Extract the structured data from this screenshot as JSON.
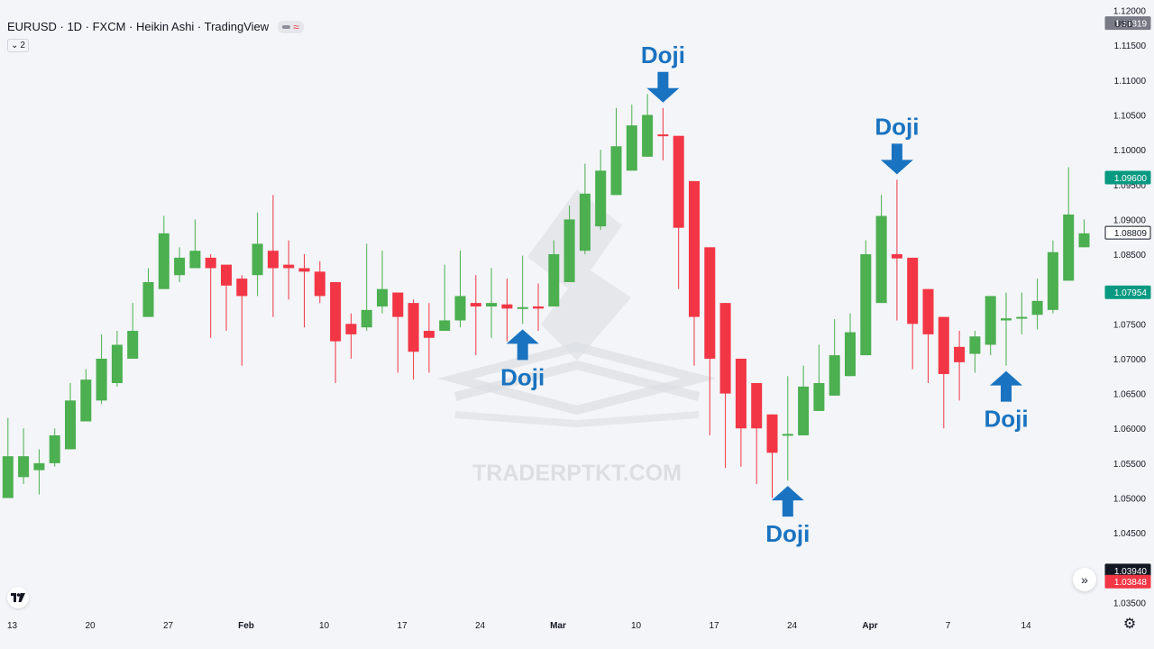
{
  "header": {
    "title": "EURUSD · 1D · FXCM · Heikin Ashi · TradingView",
    "indicator_count": "2",
    "currency": "USD"
  },
  "colors": {
    "up": "#4caf50",
    "down": "#f23645",
    "annotation": "#1a73c0",
    "watermark": "#d9dbdf"
  },
  "watermark": {
    "text": "TRADERPTKT.COM"
  },
  "chart_data": {
    "type": "candlestick",
    "style": "Heikin Ashi",
    "ylim": [
      1.0335,
      1.1215
    ],
    "grid": false,
    "yticks": [
      "1.12000",
      "1.11500",
      "1.11000",
      "1.10500",
      "1.10000",
      "1.09500",
      "1.09000",
      "1.08500",
      "1.08000",
      "1.07500",
      "1.07000",
      "1.06500",
      "1.06000",
      "1.05500",
      "1.05000",
      "1.04500",
      "1.04000",
      "1.03500"
    ],
    "xticks": [
      {
        "label": "13",
        "index": 0
      },
      {
        "label": "20",
        "index": 5
      },
      {
        "label": "27",
        "index": 10
      },
      {
        "label": "Feb",
        "index": 15,
        "bold": true
      },
      {
        "label": "10",
        "index": 20
      },
      {
        "label": "17",
        "index": 25
      },
      {
        "label": "24",
        "index": 30
      },
      {
        "label": "Mar",
        "index": 35,
        "bold": true
      },
      {
        "label": "10",
        "index": 40
      },
      {
        "label": "17",
        "index": 45
      },
      {
        "label": "24",
        "index": 50
      },
      {
        "label": "Apr",
        "index": 55,
        "bold": true
      },
      {
        "label": "7",
        "index": 60
      },
      {
        "label": "14",
        "index": 65
      }
    ],
    "candles": [
      [
        1.051,
        1.056,
        1.047,
        1.047
      ],
      [
        1.05,
        1.056,
        1.0615,
        1.05
      ],
      [
        1.053,
        1.056,
        1.06,
        1.052
      ],
      [
        1.054,
        1.055,
        1.057,
        1.0505
      ],
      [
        1.055,
        1.059,
        1.06,
        1.0545
      ],
      [
        1.057,
        1.064,
        1.0665,
        1.057
      ],
      [
        1.061,
        1.067,
        1.0685,
        1.061
      ],
      [
        1.064,
        1.07,
        1.0735,
        1.0635
      ],
      [
        1.0665,
        1.072,
        1.074,
        1.066
      ],
      [
        1.07,
        1.074,
        1.078,
        1.07
      ],
      [
        1.076,
        1.081,
        1.083,
        1.076
      ],
      [
        1.08,
        1.088,
        1.0905,
        1.08
      ],
      [
        1.082,
        1.0845,
        1.086,
        1.081
      ],
      [
        1.083,
        1.0855,
        1.09,
        1.083
      ],
      [
        1.0845,
        1.083,
        1.085,
        1.073
      ],
      [
        1.0835,
        1.0805,
        1.083,
        1.074
      ],
      [
        1.0815,
        1.079,
        1.082,
        1.069
      ],
      [
        1.082,
        1.0865,
        1.091,
        1.079
      ],
      [
        1.0855,
        1.083,
        1.0935,
        1.076
      ],
      [
        1.0835,
        1.083,
        1.087,
        1.0785
      ],
      [
        1.083,
        1.0825,
        1.085,
        1.0745
      ],
      [
        1.0825,
        1.079,
        1.084,
        1.078
      ],
      [
        1.081,
        1.0725,
        1.081,
        1.0665
      ],
      [
        1.075,
        1.0735,
        1.0765,
        1.07
      ],
      [
        1.0745,
        1.077,
        1.0865,
        1.074
      ],
      [
        1.0775,
        1.08,
        1.0855,
        1.0765
      ],
      [
        1.0795,
        1.076,
        1.0795,
        1.068
      ],
      [
        1.078,
        1.071,
        1.0785,
        1.067
      ],
      [
        1.074,
        1.073,
        1.078,
        1.068
      ],
      [
        1.074,
        1.0755,
        1.0835,
        1.074
      ],
      [
        1.0755,
        1.079,
        1.0855,
        1.0745
      ],
      [
        1.078,
        1.0775,
        1.082,
        1.0705
      ],
      [
        1.0775,
        1.078,
        1.083,
        1.073
      ],
      [
        1.0778,
        1.0772,
        1.0815,
        1.0725
      ],
      [
        1.0774,
        1.0774,
        1.0848,
        1.075
      ],
      [
        1.0775,
        1.0772,
        1.0808,
        1.074
      ],
      [
        1.0775,
        1.085,
        1.087,
        1.0775
      ],
      [
        1.081,
        1.09,
        1.092,
        1.081
      ],
      [
        1.0855,
        1.0937,
        1.098,
        1.085
      ],
      [
        1.089,
        1.097,
        1.1,
        1.0885
      ],
      [
        1.0935,
        1.1005,
        1.106,
        1.0935
      ],
      [
        1.097,
        1.1035,
        1.1065,
        1.097
      ],
      [
        1.099,
        1.105,
        1.108,
        1.099
      ],
      [
        1.1022,
        1.102,
        1.106,
        1.0985
      ],
      [
        1.102,
        1.0888,
        1.102,
        1.08
      ],
      [
        1.0955,
        1.076,
        1.0955,
        1.069
      ],
      [
        1.086,
        1.07,
        1.086,
        1.059
      ],
      [
        1.078,
        1.065,
        1.078,
        1.0543
      ],
      [
        1.07,
        1.06,
        1.07,
        1.0545
      ],
      [
        1.0665,
        1.06,
        1.0665,
        1.052
      ],
      [
        1.062,
        1.0565,
        1.062,
        1.05
      ],
      [
        1.0592,
        1.0592,
        1.0675,
        1.0525
      ],
      [
        1.059,
        1.066,
        1.069,
        1.059
      ],
      [
        1.0625,
        1.0665,
        1.072,
        1.0625
      ],
      [
        1.0647,
        1.0705,
        1.0757,
        1.0647
      ],
      [
        1.0675,
        1.0738,
        1.0765,
        1.0675
      ],
      [
        1.0705,
        1.085,
        1.087,
        1.0705
      ],
      [
        1.078,
        1.0905,
        1.0935,
        1.078
      ],
      [
        1.085,
        1.0844,
        1.0957,
        1.0755
      ],
      [
        1.0845,
        1.075,
        1.0845,
        1.0685
      ],
      [
        1.08,
        1.0735,
        1.08,
        1.0665
      ],
      [
        1.076,
        1.0678,
        1.076,
        1.06
      ],
      [
        1.0717,
        1.0695,
        1.074,
        1.064
      ],
      [
        1.0707,
        1.0732,
        1.074,
        1.068
      ],
      [
        1.072,
        1.079,
        1.079,
        1.0705
      ],
      [
        1.0755,
        1.0758,
        1.0795,
        1.069
      ],
      [
        1.076,
        1.076,
        1.0795,
        1.0735
      ],
      [
        1.0763,
        1.0783,
        1.0815,
        1.0742
      ],
      [
        1.077,
        1.0853,
        1.087,
        1.0765
      ],
      [
        1.0812,
        1.0907,
        1.0975,
        1.0812
      ],
      [
        1.086,
        1.088,
        1.09,
        1.086
      ]
    ],
    "price_labels": [
      {
        "value": "1.11819",
        "price": 1.11819,
        "color": "#787b86",
        "text_color": "#ffffff"
      },
      {
        "value": "1.09600",
        "price": 1.096,
        "color": "#089981",
        "text_color": "#ffffff"
      },
      {
        "value": "1.08809",
        "price": 1.08809,
        "color": "#ffffff",
        "text_color": "#131722",
        "border": "#131722"
      },
      {
        "value": "1.07954",
        "price": 1.07954,
        "color": "#089981",
        "text_color": "#ffffff"
      },
      {
        "value": "1.03940",
        "price": 1.0396,
        "color": "#131722",
        "text_color": "#ffffff"
      },
      {
        "value": "1.03848",
        "price": 1.038,
        "color": "#f23645",
        "text_color": "#ffffff"
      }
    ],
    "annotations": [
      {
        "text": "Doji",
        "direction": "up",
        "index": 34
      },
      {
        "text": "Doji",
        "direction": "down",
        "index": 43
      },
      {
        "text": "Doji",
        "direction": "up",
        "index": 51
      },
      {
        "text": "Doji",
        "direction": "down",
        "index": 58
      },
      {
        "text": "Doji",
        "direction": "up",
        "index": 65
      }
    ]
  }
}
